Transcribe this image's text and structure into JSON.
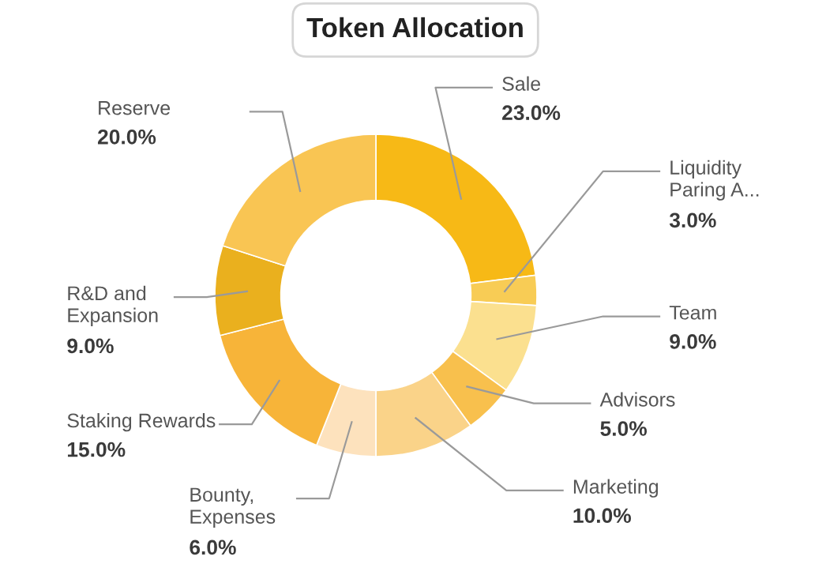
{
  "chart_data": {
    "type": "donut",
    "title": "Token Allocation",
    "categories": [
      "Sale",
      "Liquidity\nParing A...",
      "Team",
      "Advisors",
      "Marketing",
      "Bounty,\nExpenses",
      "Staking Rewards",
      "R&D and\nExpansion",
      "Reserve"
    ],
    "values": [
      23,
      3,
      9,
      5,
      10,
      6,
      15,
      9,
      20
    ],
    "value_labels": [
      "23.0%",
      "3.0%",
      "9.0%",
      "5.0%",
      "10.0%",
      "6.0%",
      "15.0%",
      "9.0%",
      "20.0%"
    ],
    "colors": [
      "#f7b916",
      "#f8cc55",
      "#fbe08f",
      "#f8c04d",
      "#fad389",
      "#fde2bd",
      "#f7b439",
      "#eab01e",
      "#f9c553"
    ]
  }
}
